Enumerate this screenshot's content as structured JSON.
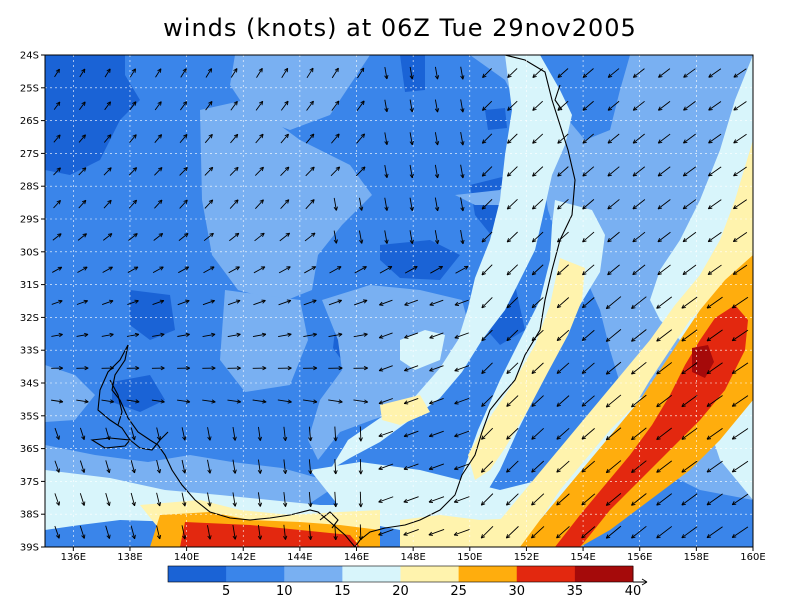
{
  "title": "winds (knots) at 06Z Tue 29nov2005",
  "map": {
    "lat_labels": [
      "24S",
      "25S",
      "26S",
      "27S",
      "28S",
      "29S",
      "30S",
      "31S",
      "32S",
      "33S",
      "34S",
      "35S",
      "36S",
      "37S",
      "38S",
      "39S"
    ],
    "lon_labels": [
      "136E",
      "138E",
      "140E",
      "142E",
      "144E",
      "146E",
      "148E",
      "150E",
      "152E",
      "154E",
      "156E",
      "158E",
      "160E"
    ],
    "lat_range": [
      -39,
      -24
    ],
    "lon_range": [
      135,
      160
    ],
    "grid": "dotted"
  },
  "colorbar": {
    "labels": [
      "5",
      "10",
      "15",
      "20",
      "25",
      "30",
      "35",
      "40"
    ],
    "levels": [
      0,
      5,
      10,
      15,
      20,
      25,
      30,
      35,
      40
    ],
    "colors": [
      "#1a63d6",
      "#3a85ea",
      "#79b0f2",
      "#d8f5fb",
      "#fff3ad",
      "#ffad0d",
      "#e3280f",
      "#a50a0a"
    ]
  },
  "colors": {
    "coast": "#000000",
    "arrow": "#000000"
  }
}
